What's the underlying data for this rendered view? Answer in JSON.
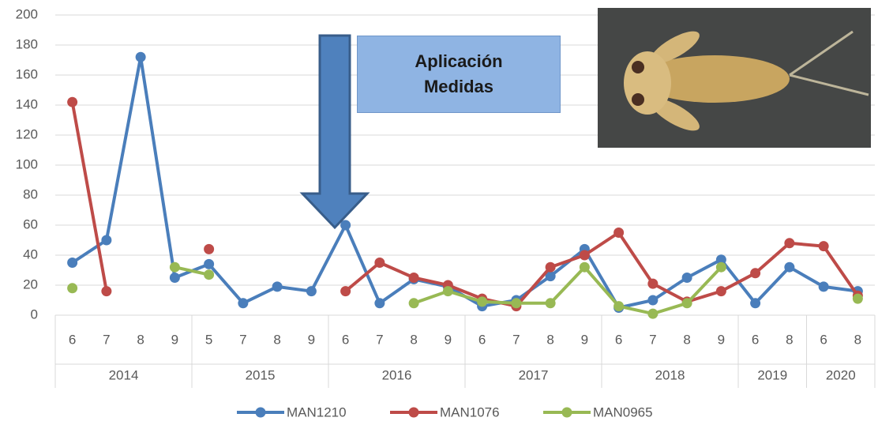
{
  "chart_data": {
    "type": "line",
    "categories": [
      "6",
      "7",
      "8",
      "9",
      "5",
      "7",
      "8",
      "9",
      "6",
      "7",
      "8",
      "9",
      "6",
      "7",
      "8",
      "9",
      "6",
      "7",
      "8",
      "9",
      "6",
      "8",
      "6",
      "8"
    ],
    "category_groups": [
      "2014",
      "2014",
      "2014",
      "2014",
      "2015",
      "2015",
      "2015",
      "2015",
      "2016",
      "2016",
      "2016",
      "2016",
      "2017",
      "2017",
      "2017",
      "2017",
      "2018",
      "2018",
      "2018",
      "2018",
      "2019",
      "2019",
      "2020",
      "2020"
    ],
    "series": [
      {
        "name": "MAN1210",
        "color": "#4a7ebb",
        "values": [
          35,
          50,
          172,
          25,
          34,
          8,
          19,
          16,
          60,
          8,
          24,
          19,
          6,
          10,
          26,
          44,
          5,
          10,
          25,
          37,
          8,
          32,
          19,
          16
        ]
      },
      {
        "name": "MAN1076",
        "color": "#be4b48",
        "values": [
          142,
          16,
          null,
          null,
          44,
          null,
          null,
          null,
          16,
          35,
          25,
          20,
          11,
          6,
          32,
          40,
          55,
          21,
          9,
          16,
          28,
          48,
          46,
          13
        ]
      },
      {
        "name": "MAN0965",
        "color": "#98b954",
        "values": [
          18,
          null,
          null,
          32,
          27,
          null,
          null,
          null,
          null,
          null,
          8,
          16,
          9,
          8,
          8,
          32,
          6,
          1,
          8,
          32,
          null,
          null,
          null,
          11
        ]
      }
    ],
    "ylim": [
      0,
      200
    ],
    "yticks": [
      0,
      20,
      40,
      60,
      80,
      100,
      120,
      140,
      160,
      180,
      200
    ],
    "grid": true,
    "annotation": "Aplicación Medidas"
  }
}
